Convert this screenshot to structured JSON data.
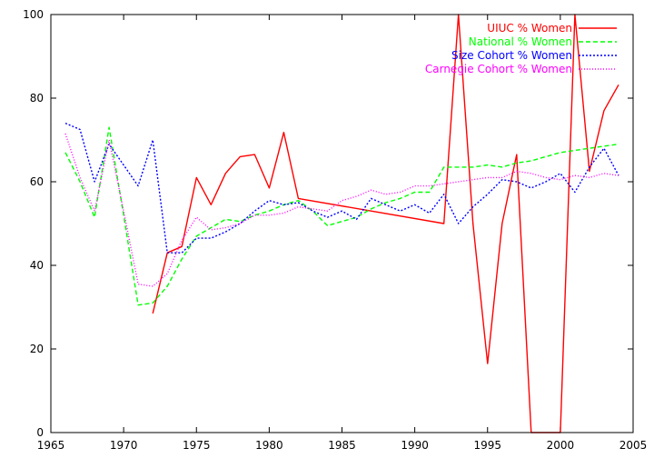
{
  "chart_data": {
    "type": "line",
    "title": "",
    "xlabel": "",
    "ylabel": "",
    "xlim": [
      1965,
      2005
    ],
    "ylim": [
      0,
      100
    ],
    "x_ticks": [
      1965,
      1970,
      1975,
      1980,
      1985,
      1990,
      1995,
      2000,
      2005
    ],
    "y_ticks": [
      0,
      20,
      40,
      60,
      80,
      100
    ],
    "grid": false,
    "legend_position": "top-right",
    "series": [
      {
        "name": "UIUC % Women",
        "color": "#ff0000",
        "dash": "solid",
        "points": [
          [
            1972,
            28.5
          ],
          [
            1973,
            43
          ],
          [
            1974,
            44.5
          ],
          [
            1975,
            61
          ],
          [
            1976,
            54.5
          ],
          [
            1977,
            62
          ],
          [
            1978,
            66
          ],
          [
            1979,
            66.5
          ],
          [
            1980,
            58.5
          ],
          [
            1981,
            71.8
          ],
          [
            1982,
            56
          ],
          [
            1992,
            50
          ],
          [
            1993,
            100
          ],
          [
            1994,
            50
          ],
          [
            1995,
            16.5
          ],
          [
            1996,
            50
          ],
          [
            1997,
            66.5
          ],
          [
            1998,
            0
          ],
          [
            2000,
            0
          ],
          [
            2001,
            100
          ],
          [
            2002,
            62.5
          ],
          [
            2003,
            77
          ],
          [
            2004,
            83.2
          ]
        ]
      },
      {
        "name": "National % Women",
        "color": "#00ff00",
        "dash": "dashed",
        "points": [
          [
            1966,
            67
          ],
          [
            1967,
            60
          ],
          [
            1968,
            51.5
          ],
          [
            1969,
            73
          ],
          [
            1970,
            52
          ],
          [
            1971,
            30.5
          ],
          [
            1972,
            31
          ],
          [
            1973,
            35
          ],
          [
            1974,
            41.5
          ],
          [
            1975,
            47
          ],
          [
            1976,
            49
          ],
          [
            1977,
            51
          ],
          [
            1978,
            50.5
          ],
          [
            1979,
            52
          ],
          [
            1980,
            53
          ],
          [
            1981,
            54.5
          ],
          [
            1982,
            55.5
          ],
          [
            1983,
            53
          ],
          [
            1984,
            49.5
          ],
          [
            1985,
            50.5
          ],
          [
            1986,
            51.5
          ],
          [
            1987,
            53.5
          ],
          [
            1988,
            55
          ],
          [
            1989,
            56
          ],
          [
            1990,
            57.5
          ],
          [
            1991,
            57.5
          ],
          [
            1992,
            63.5
          ],
          [
            1993,
            63.5
          ],
          [
            1994,
            63.5
          ],
          [
            1995,
            64
          ],
          [
            1996,
            63.5
          ],
          [
            1997,
            64.5
          ],
          [
            1998,
            65
          ],
          [
            1999,
            66
          ],
          [
            2000,
            67
          ],
          [
            2001,
            67.5
          ],
          [
            2002,
            68
          ],
          [
            2003,
            68.5
          ],
          [
            2004,
            69
          ]
        ]
      },
      {
        "name": "Size Cohort % Women",
        "color": "#0000ff",
        "dash": "dotted",
        "points": [
          [
            1966,
            74
          ],
          [
            1967,
            72.5
          ],
          [
            1968,
            60
          ],
          [
            1969,
            69
          ],
          [
            1970,
            64
          ],
          [
            1971,
            59
          ],
          [
            1972,
            70
          ],
          [
            1973,
            43
          ],
          [
            1974,
            43
          ],
          [
            1975,
            46.5
          ],
          [
            1976,
            46.5
          ],
          [
            1977,
            48
          ],
          [
            1978,
            50
          ],
          [
            1979,
            53
          ],
          [
            1980,
            55.5
          ],
          [
            1981,
            54.5
          ],
          [
            1982,
            55
          ],
          [
            1983,
            53
          ],
          [
            1984,
            51.5
          ],
          [
            1985,
            53
          ],
          [
            1986,
            51
          ],
          [
            1987,
            56
          ],
          [
            1988,
            54.5
          ],
          [
            1989,
            53
          ],
          [
            1990,
            54.5
          ],
          [
            1991,
            52.5
          ],
          [
            1992,
            57
          ],
          [
            1993,
            50
          ],
          [
            1994,
            54
          ],
          [
            1995,
            57
          ],
          [
            1996,
            60.5
          ],
          [
            1997,
            60
          ],
          [
            1998,
            58.5
          ],
          [
            1999,
            60
          ],
          [
            2000,
            62
          ],
          [
            2001,
            57.5
          ],
          [
            2002,
            63.5
          ],
          [
            2003,
            68
          ],
          [
            2004,
            61.5
          ]
        ]
      },
      {
        "name": "Carnegie Cohort % Women",
        "color": "#ff00ff",
        "dash": "finedotted",
        "points": [
          [
            1966,
            71.5
          ],
          [
            1967,
            61
          ],
          [
            1968,
            53
          ],
          [
            1969,
            70
          ],
          [
            1970,
            53
          ],
          [
            1971,
            35.5
          ],
          [
            1972,
            35
          ],
          [
            1973,
            38
          ],
          [
            1974,
            46
          ],
          [
            1975,
            51.5
          ],
          [
            1976,
            48.5
          ],
          [
            1977,
            49
          ],
          [
            1978,
            50
          ],
          [
            1979,
            52
          ],
          [
            1980,
            52
          ],
          [
            1981,
            52.5
          ],
          [
            1982,
            54
          ],
          [
            1983,
            53.5
          ],
          [
            1984,
            53
          ],
          [
            1985,
            55.5
          ],
          [
            1986,
            56.5
          ],
          [
            1987,
            58
          ],
          [
            1988,
            57
          ],
          [
            1989,
            57.5
          ],
          [
            1990,
            59
          ],
          [
            1991,
            59
          ],
          [
            1992,
            59.5
          ],
          [
            1993,
            60
          ],
          [
            1994,
            60.5
          ],
          [
            1995,
            61
          ],
          [
            1996,
            61
          ],
          [
            1997,
            62.5
          ],
          [
            1998,
            62
          ],
          [
            1999,
            61
          ],
          [
            2000,
            60.5
          ],
          [
            2001,
            61.5
          ],
          [
            2002,
            61
          ],
          [
            2003,
            62
          ],
          [
            2004,
            61.5
          ]
        ]
      }
    ]
  }
}
